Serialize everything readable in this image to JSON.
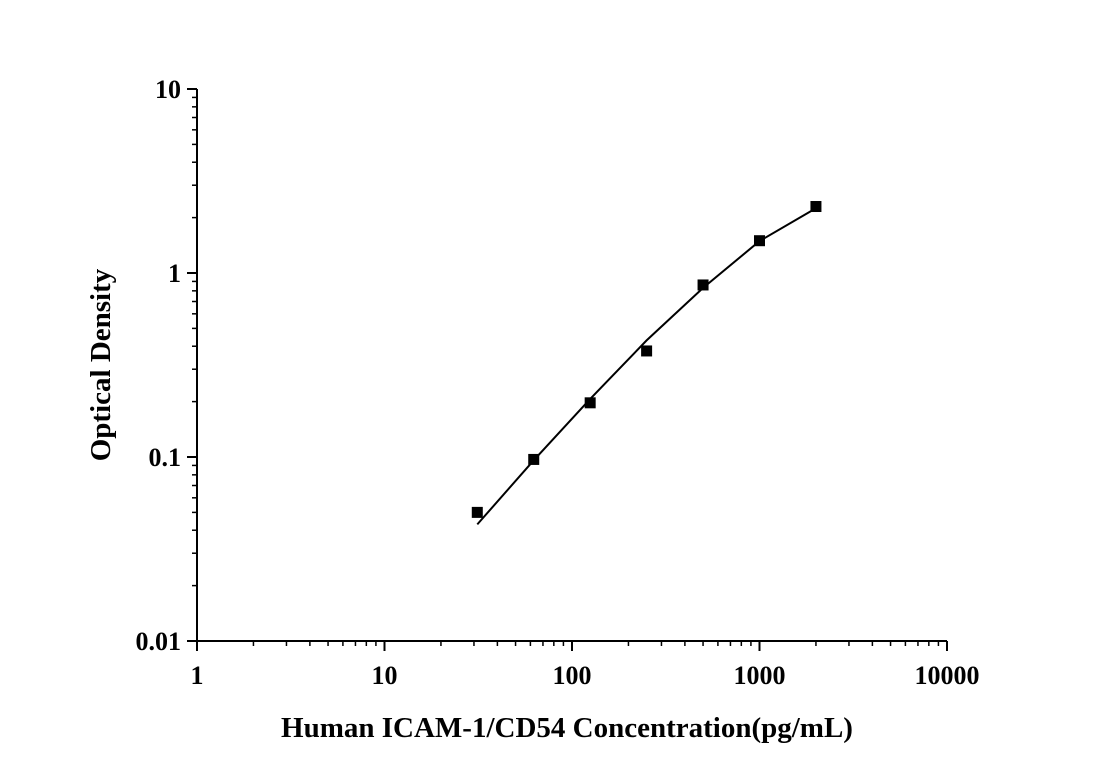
{
  "chart_data": {
    "type": "scatter",
    "title": "",
    "xlabel": "Human ICAM-1/CD54 Concentration(pg/mL)",
    "ylabel": "Optical Density",
    "xscale": "log",
    "yscale": "log",
    "xlim": [
      1,
      10000
    ],
    "ylim": [
      0.01,
      10
    ],
    "x_ticks": [
      "1",
      "10",
      "100",
      "1000",
      "10000"
    ],
    "y_ticks": [
      "0.01",
      "0.1",
      "1",
      "10"
    ],
    "grid": false,
    "legend": "none",
    "series": [
      {
        "marker": "square",
        "x": [
          31.25,
          62.5,
          125,
          250,
          500,
          1000,
          2000
        ],
        "y": [
          0.05,
          0.097,
          0.197,
          0.377,
          0.861,
          1.498,
          2.298
        ]
      }
    ],
    "fit_curve": {
      "x": [
        31.25,
        62.5,
        125,
        250,
        500,
        1000,
        2000
      ],
      "y": [
        0.043,
        0.096,
        0.207,
        0.43,
        0.83,
        1.49,
        2.25
      ]
    },
    "colors": {
      "marker": "#000000",
      "line": "#000000",
      "axis": "#000000"
    }
  }
}
